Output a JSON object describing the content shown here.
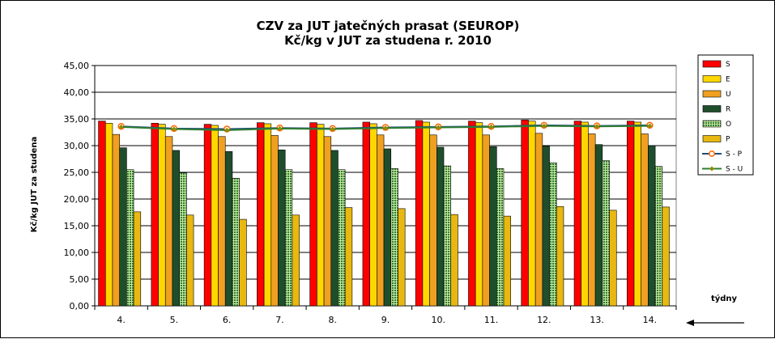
{
  "chart_data": {
    "type": "bar",
    "title": "CZV za JUT jatečných prasat (SEUROP)",
    "subtitle": "Kč/kg v JUT za studena r. 2010",
    "ylabel": "Kč/kg  JUT za studena",
    "xlabel": "týdny",
    "ylim": [
      0,
      45
    ],
    "yticks": [
      "0,00",
      "5,00",
      "10,00",
      "15,00",
      "20,00",
      "25,00",
      "30,00",
      "35,00",
      "40,00",
      "45,00"
    ],
    "categories": [
      "4.",
      "5.",
      "6.",
      "7.",
      "8.",
      "9.",
      "10.",
      "11.",
      "12.",
      "13.",
      "14."
    ],
    "grid": true,
    "legend_position": "right",
    "series": [
      {
        "name": "S",
        "kind": "bar",
        "color": "#FF0000",
        "pattern": "solid",
        "values": [
          34.6,
          34.2,
          34.0,
          34.3,
          34.3,
          34.4,
          34.7,
          34.6,
          34.8,
          34.6,
          34.6
        ]
      },
      {
        "name": "E",
        "kind": "bar",
        "color": "#FFD700",
        "pattern": "solid",
        "values": [
          34.2,
          34.0,
          33.8,
          34.1,
          34.0,
          34.1,
          34.4,
          34.3,
          34.6,
          34.4,
          34.4
        ]
      },
      {
        "name": "U",
        "kind": "bar",
        "color": "#F0A020",
        "pattern": "solid",
        "values": [
          32.1,
          31.7,
          31.7,
          31.9,
          31.7,
          32.0,
          32.0,
          32.0,
          32.3,
          32.2,
          32.2
        ]
      },
      {
        "name": "R",
        "kind": "bar",
        "color": "#1F4E2C",
        "pattern": "solid",
        "values": [
          29.6,
          29.1,
          28.9,
          29.2,
          29.1,
          29.4,
          29.7,
          29.8,
          29.9,
          30.2,
          30.0
        ]
      },
      {
        "name": "O",
        "kind": "bar",
        "color": "#2E7D32",
        "pattern": "dots",
        "values": [
          25.5,
          24.9,
          23.9,
          25.5,
          25.5,
          25.7,
          26.2,
          25.7,
          26.8,
          27.2,
          26.1
        ]
      },
      {
        "name": "P",
        "kind": "bar",
        "color": "#E8B810",
        "pattern": "solid",
        "values": [
          17.6,
          17.0,
          16.2,
          17.0,
          18.4,
          18.2,
          17.1,
          16.8,
          18.6,
          17.9,
          18.5
        ]
      },
      {
        "name": "S - P",
        "kind": "line",
        "color": "#1F4E79",
        "marker": "circle",
        "markerColor": "#FF6600",
        "values": [
          33.6,
          33.2,
          33.1,
          33.3,
          33.2,
          33.4,
          33.5,
          33.6,
          33.8,
          33.7,
          33.8
        ]
      },
      {
        "name": "S - U",
        "kind": "line",
        "color": "#2E7D32",
        "marker": "diamond",
        "markerColor": "#8B8B00",
        "values": [
          33.5,
          33.1,
          32.9,
          33.2,
          33.1,
          33.3,
          33.4,
          33.5,
          33.7,
          33.6,
          33.7
        ]
      }
    ]
  }
}
